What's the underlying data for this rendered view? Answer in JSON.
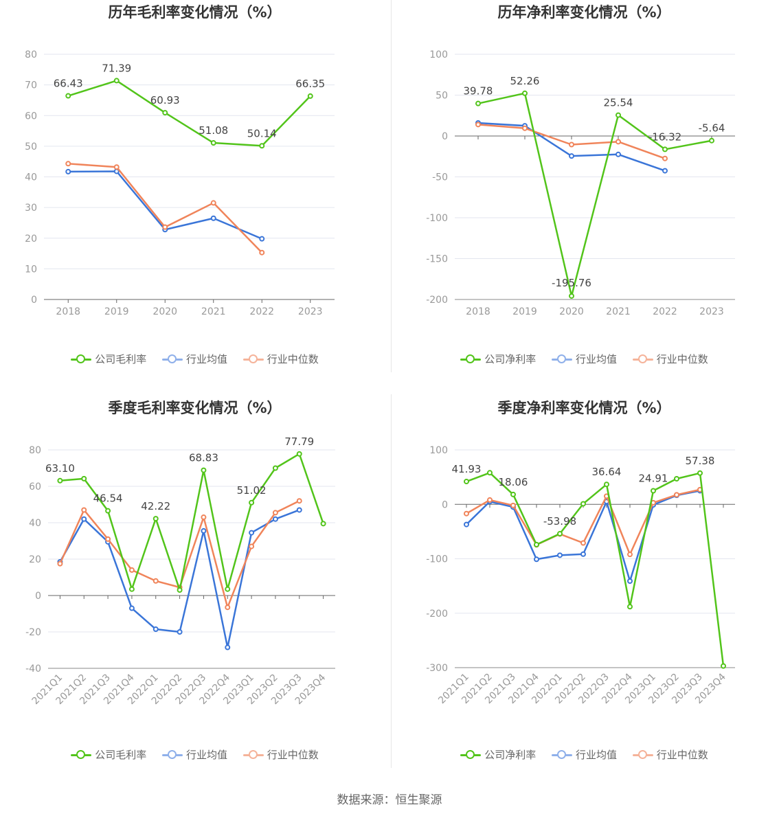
{
  "chart_data": [
    {
      "type": "line",
      "title": "历年毛利率变化情况（%）",
      "categories": [
        "2018",
        "2019",
        "2020",
        "2021",
        "2022",
        "2023"
      ],
      "ylim": [
        0,
        80
      ],
      "yticks": [
        0,
        10,
        20,
        30,
        40,
        50,
        60,
        70,
        80
      ],
      "series": [
        {
          "name": "公司毛利率",
          "values": [
            66.43,
            71.39,
            60.93,
            51.08,
            50.14,
            66.35
          ]
        },
        {
          "name": "行业均值",
          "values": [
            41.7,
            41.8,
            22.8,
            26.5,
            19.8,
            null
          ]
        },
        {
          "name": "行业中位数",
          "values": [
            44.3,
            43.2,
            23.6,
            31.5,
            15.3,
            null
          ]
        }
      ],
      "labels": [
        "66.43",
        "71.39",
        "60.93",
        "51.08",
        "50.14",
        "66.35"
      ]
    },
    {
      "type": "line",
      "title": "历年净利率变化情况（%）",
      "categories": [
        "2018",
        "2019",
        "2020",
        "2021",
        "2022",
        "2023"
      ],
      "ylim": [
        -200,
        100
      ],
      "yticks": [
        -200,
        -150,
        -100,
        -50,
        0,
        50,
        100
      ],
      "series": [
        {
          "name": "公司净利率",
          "values": [
            39.78,
            52.26,
            -195.76,
            25.54,
            -16.32,
            -5.64
          ]
        },
        {
          "name": "行业均值",
          "values": [
            16.0,
            12.5,
            -24.5,
            -22.5,
            -42.5,
            null
          ]
        },
        {
          "name": "行业中位数",
          "values": [
            14.0,
            9.5,
            -10.5,
            -7.0,
            -27.5,
            null
          ]
        }
      ],
      "labels": [
        "39.78",
        "52.26",
        "-195.76",
        "25.54",
        "-16.32",
        "-5.64"
      ]
    },
    {
      "type": "line",
      "title": "季度毛利率变化情况（%）",
      "categories": [
        "2021Q1",
        "2021Q2",
        "2021Q3",
        "2021Q4",
        "2022Q1",
        "2022Q2",
        "2022Q3",
        "2022Q4",
        "2023Q1",
        "2023Q2",
        "2023Q3",
        "2023Q4"
      ],
      "ylim": [
        -40,
        80
      ],
      "yticks": [
        -40,
        -20,
        0,
        20,
        40,
        60,
        80
      ],
      "series": [
        {
          "name": "公司毛利率",
          "values": [
            63.1,
            64.2,
            46.54,
            3.5,
            42.22,
            3.0,
            68.83,
            3.5,
            51.02,
            70.0,
            77.79,
            39.5
          ]
        },
        {
          "name": "行业均值",
          "values": [
            18.5,
            42.0,
            29.5,
            -7.0,
            -18.5,
            -20.0,
            35.5,
            -28.5,
            34.5,
            42.0,
            47.0,
            null
          ]
        },
        {
          "name": "行业中位数",
          "values": [
            17.5,
            47.0,
            31.0,
            14.0,
            8.0,
            4.5,
            43.0,
            -6.5,
            27.0,
            45.5,
            52.0,
            null
          ]
        }
      ],
      "labels": [
        "63.10",
        "",
        "46.54",
        "",
        "42.22",
        "",
        "68.83",
        "",
        "51.02",
        "",
        "77.79",
        ""
      ]
    },
    {
      "type": "line",
      "title": "季度净利率变化情况（%）",
      "categories": [
        "2021Q1",
        "2021Q2",
        "2021Q3",
        "2021Q4",
        "2022Q1",
        "2022Q2",
        "2022Q3",
        "2022Q4",
        "2023Q1",
        "2023Q2",
        "2023Q3",
        "2023Q4"
      ],
      "ylim": [
        -300,
        100
      ],
      "yticks": [
        -300,
        -200,
        -100,
        0,
        100
      ],
      "series": [
        {
          "name": "公司净利率",
          "values": [
            41.93,
            58.0,
            18.06,
            -74.0,
            -53.98,
            1.0,
            36.64,
            -188.0,
            24.91,
            47.0,
            57.38,
            -297.0
          ]
        },
        {
          "name": "行业均值",
          "values": [
            -37.0,
            5.0,
            -5.0,
            -101.0,
            -93.5,
            -91.5,
            5.0,
            -141.0,
            -1.0,
            16.5,
            25.0,
            null
          ]
        },
        {
          "name": "行业中位数",
          "values": [
            -17.0,
            8.0,
            -2.0,
            -74.5,
            -54.5,
            -71.0,
            15.0,
            -92.0,
            3.0,
            17.5,
            27.0,
            null
          ]
        }
      ],
      "labels": [
        "41.93",
        "",
        "18.06",
        "",
        "-53.98",
        "",
        "36.64",
        "",
        "24.91",
        "",
        "57.38",
        ""
      ]
    }
  ],
  "colors": {
    "company": "#52c41a",
    "avg": "#3a75d8",
    "median": "#f0845a",
    "grid": "#e3e6ef",
    "axis": "#999999"
  },
  "legends": [
    [
      "公司毛利率",
      "行业均值",
      "行业中位数"
    ],
    [
      "公司净利率",
      "行业均值",
      "行业中位数"
    ],
    [
      "公司毛利率",
      "行业均值",
      "行业中位数"
    ],
    [
      "公司净利率",
      "行业均值",
      "行业中位数"
    ]
  ],
  "source": "数据来源：恒生聚源"
}
